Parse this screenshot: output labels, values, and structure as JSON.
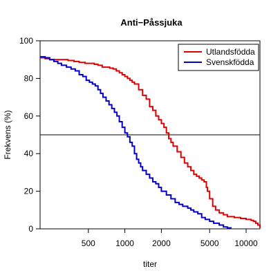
{
  "chart_data": {
    "type": "line",
    "title": "Anti−Påssjuka",
    "xlabel": "titer",
    "ylabel": "Frekvens (%)",
    "x_scale": "log",
    "xlim": [
      200,
      13000
    ],
    "ylim": [
      0,
      100
    ],
    "x_ticks": [
      {
        "value": 500,
        "label": "500"
      },
      {
        "value": 1000,
        "label": "1000"
      },
      {
        "value": 2000,
        "label": "2000"
      },
      {
        "value": 5000,
        "label": "5000"
      },
      {
        "value": 10000,
        "label": "10000"
      }
    ],
    "y_ticks": [
      {
        "value": 0,
        "label": "0"
      },
      {
        "value": 20,
        "label": "20"
      },
      {
        "value": 40,
        "label": "40"
      },
      {
        "value": 60,
        "label": "60"
      },
      {
        "value": 80,
        "label": "80"
      },
      {
        "value": 100,
        "label": "100"
      }
    ],
    "reference_line": {
      "y": 50,
      "color": "#000000"
    },
    "grid": false,
    "legend": {
      "position": "top-right"
    },
    "series": [
      {
        "name": "Utlandsfödda",
        "color": "#e00000",
        "x": [
          200,
          220,
          240,
          270,
          300,
          340,
          380,
          420,
          470,
          520,
          560,
          600,
          650,
          700,
          750,
          800,
          850,
          900,
          950,
          1000,
          1050,
          1100,
          1150,
          1200,
          1300,
          1400,
          1500,
          1600,
          1700,
          1800,
          1900,
          2000,
          2100,
          2200,
          2300,
          2400,
          2500,
          2700,
          2900,
          3100,
          3300,
          3500,
          3700,
          3900,
          4100,
          4300,
          4500,
          4700,
          4800,
          5000,
          5300,
          5600,
          6000,
          6500,
          7000,
          8000,
          9000,
          10000,
          11000,
          11500,
          12000,
          12500,
          13000
        ],
        "y": [
          91,
          90.5,
          90,
          90,
          90,
          89.5,
          89,
          88.5,
          88,
          88,
          87.5,
          87,
          86,
          86,
          85.5,
          85,
          84,
          83,
          82,
          81,
          80,
          79,
          78,
          77,
          74,
          71,
          69,
          65,
          63,
          60,
          58,
          56,
          54,
          51,
          48,
          46,
          44,
          41,
          38,
          35,
          33,
          31,
          29,
          28,
          27,
          26,
          25,
          22,
          20,
          16,
          12,
          10,
          8.5,
          7.5,
          6.5,
          6,
          5.5,
          5,
          4.5,
          4,
          3,
          2,
          0.5
        ]
      },
      {
        "name": "Svenskfödda",
        "color": "#0000cc",
        "x": [
          200,
          210,
          220,
          240,
          260,
          280,
          300,
          330,
          360,
          390,
          420,
          450,
          480,
          510,
          540,
          570,
          600,
          630,
          660,
          700,
          740,
          780,
          820,
          860,
          900,
          950,
          1000,
          1050,
          1100,
          1150,
          1200,
          1250,
          1300,
          1350,
          1400,
          1500,
          1600,
          1700,
          1800,
          1900,
          2000,
          2200,
          2400,
          2600,
          2800,
          3000,
          3300,
          3500,
          3700,
          4000,
          4300,
          4600,
          5000,
          5400,
          6000,
          6500,
          7000,
          7500
        ],
        "y": [
          91.5,
          91.5,
          91,
          90,
          89,
          88,
          87,
          86,
          85,
          84,
          82,
          81,
          79,
          78,
          77,
          76,
          74,
          72,
          70,
          68,
          66,
          64,
          62,
          60,
          57,
          54,
          51,
          49,
          46,
          44,
          40,
          37,
          35,
          33,
          31,
          29,
          27,
          25,
          24,
          22,
          20,
          18,
          16,
          14,
          13,
          12,
          11,
          10,
          9,
          8,
          6,
          5,
          4,
          3,
          2,
          1,
          0.5,
          0.3
        ]
      }
    ]
  }
}
